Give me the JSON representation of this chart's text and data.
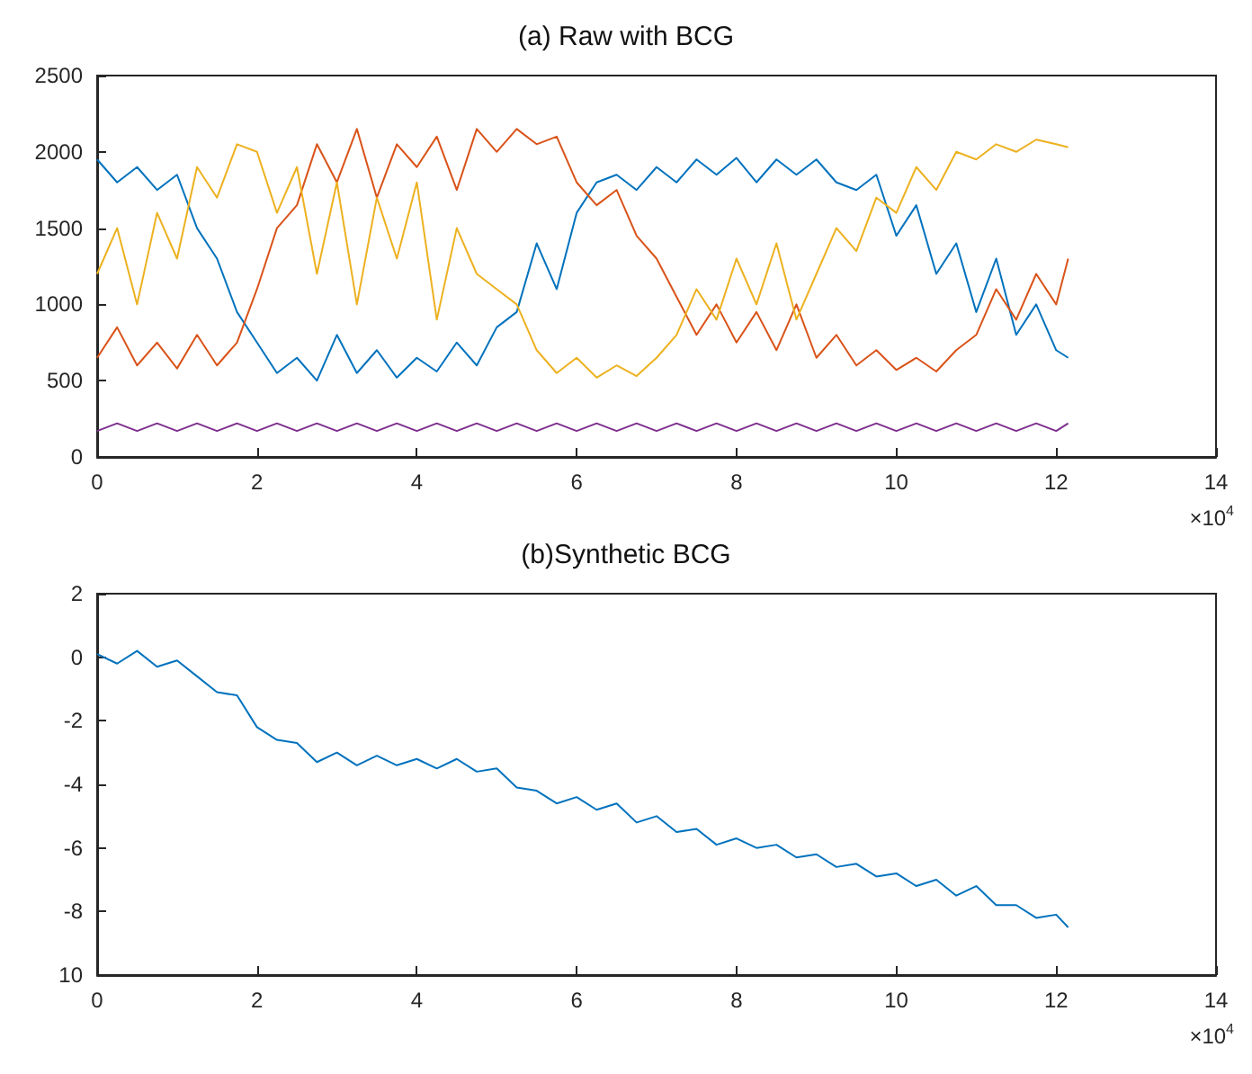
{
  "chart_data": [
    {
      "type": "line",
      "title": "(a) Raw with BCG",
      "annotations": [
        "×10$^{4}$"
      ],
      "xlim": [
        0,
        14
      ],
      "xticks": [
        0,
        2,
        4,
        6,
        8,
        10,
        12,
        14
      ],
      "ylim": [
        0,
        2500
      ],
      "yticks": [
        0,
        500,
        1000,
        1500,
        2000,
        2500
      ],
      "grid": false,
      "marker": "none",
      "line_style": "solid",
      "x": [
        0,
        0.25,
        0.5,
        0.75,
        1,
        1.25,
        1.5,
        1.75,
        2,
        2.25,
        2.5,
        2.75,
        3,
        3.25,
        3.5,
        3.75,
        4,
        4.25,
        4.5,
        4.75,
        5,
        5.25,
        5.5,
        5.75,
        6,
        6.25,
        6.5,
        6.75,
        7,
        7.25,
        7.5,
        7.75,
        8,
        8.25,
        8.5,
        8.75,
        9,
        9.25,
        9.5,
        9.75,
        10,
        10.25,
        10.5,
        10.75,
        11,
        11.25,
        11.5,
        11.75,
        12,
        12.15
      ],
      "series": [
        {
          "color": "#0072bd",
          "values": [
            1950,
            1800,
            1900,
            1750,
            1850,
            1500,
            1300,
            950,
            750,
            550,
            650,
            500,
            800,
            550,
            700,
            520,
            650,
            560,
            750,
            600,
            850,
            950,
            1400,
            1100,
            1600,
            1800,
            1850,
            1750,
            1900,
            1800,
            1950,
            1850,
            1960,
            1800,
            1950,
            1850,
            1950,
            1800,
            1750,
            1850,
            1450,
            1650,
            1200,
            1400,
            950,
            1300,
            800,
            1000,
            700,
            650
          ]
        },
        {
          "color": "#d95319",
          "values": [
            650,
            850,
            600,
            750,
            580,
            800,
            600,
            750,
            1100,
            1500,
            1650,
            2050,
            1800,
            2150,
            1700,
            2050,
            1900,
            2100,
            1750,
            2150,
            2000,
            2150,
            2050,
            2100,
            1800,
            1650,
            1750,
            1450,
            1300,
            1050,
            800,
            1000,
            750,
            950,
            700,
            1000,
            650,
            800,
            600,
            700,
            570,
            650,
            560,
            700,
            800,
            1100,
            900,
            1200,
            1000,
            1300
          ]
        },
        {
          "color": "#edb120",
          "values": [
            1200,
            1500,
            1000,
            1600,
            1300,
            1900,
            1700,
            2050,
            2000,
            1600,
            1900,
            1200,
            1800,
            1000,
            1700,
            1300,
            1800,
            900,
            1500,
            1200,
            1100,
            1000,
            700,
            550,
            650,
            520,
            600,
            530,
            650,
            800,
            1100,
            900,
            1300,
            1000,
            1400,
            900,
            1200,
            1500,
            1350,
            1700,
            1600,
            1900,
            1750,
            2000,
            1950,
            2050,
            2000,
            2080,
            2050,
            2030
          ]
        },
        {
          "color": "#7e2f8e",
          "values": [
            170,
            220,
            170,
            220,
            170,
            220,
            170,
            220,
            170,
            220,
            170,
            220,
            170,
            220,
            170,
            220,
            170,
            220,
            170,
            220,
            170,
            220,
            170,
            220,
            170,
            220,
            170,
            220,
            170,
            220,
            170,
            220,
            170,
            220,
            170,
            220,
            170,
            220,
            170,
            220,
            170,
            220,
            170,
            220,
            170,
            220,
            170,
            220,
            170,
            220
          ]
        }
      ]
    },
    {
      "type": "line",
      "title": "(b)Synthetic BCG",
      "annotations": [
        "×10$^{4}$"
      ],
      "xlim": [
        0,
        14
      ],
      "xticks": [
        0,
        2,
        4,
        6,
        8,
        10,
        12,
        14
      ],
      "ylim": [
        -10,
        2
      ],
      "yticks": [
        2,
        0,
        -2,
        -4,
        -6,
        -8,
        {
          "value": -10,
          "label": "10"
        }
      ],
      "grid": false,
      "marker": "none",
      "line_style": "solid",
      "x": [
        0,
        0.25,
        0.5,
        0.75,
        1,
        1.25,
        1.5,
        1.75,
        2,
        2.25,
        2.5,
        2.75,
        3,
        3.25,
        3.5,
        3.75,
        4,
        4.25,
        4.5,
        4.75,
        5,
        5.25,
        5.5,
        5.75,
        6,
        6.25,
        6.5,
        6.75,
        7,
        7.25,
        7.5,
        7.75,
        8,
        8.25,
        8.5,
        8.75,
        9,
        9.25,
        9.5,
        9.75,
        10,
        10.25,
        10.5,
        10.75,
        11,
        11.25,
        11.5,
        11.75,
        12,
        12.15
      ],
      "series": [
        {
          "color": "#0072bd",
          "values": [
            0.1,
            -0.2,
            0.2,
            -0.3,
            -0.1,
            -0.6,
            -1.1,
            -1.2,
            -2.2,
            -2.6,
            -2.7,
            -3.3,
            -3.0,
            -3.4,
            -3.1,
            -3.4,
            -3.2,
            -3.5,
            -3.2,
            -3.6,
            -3.5,
            -4.1,
            -4.2,
            -4.6,
            -4.4,
            -4.8,
            -4.6,
            -5.2,
            -5.0,
            -5.5,
            -5.4,
            -5.9,
            -5.7,
            -6.0,
            -5.9,
            -6.3,
            -6.2,
            -6.6,
            -6.5,
            -6.9,
            -6.8,
            -7.2,
            -7.0,
            -7.5,
            -7.2,
            -7.8,
            -7.8,
            -8.2,
            -8.1,
            -8.5
          ]
        }
      ]
    }
  ]
}
